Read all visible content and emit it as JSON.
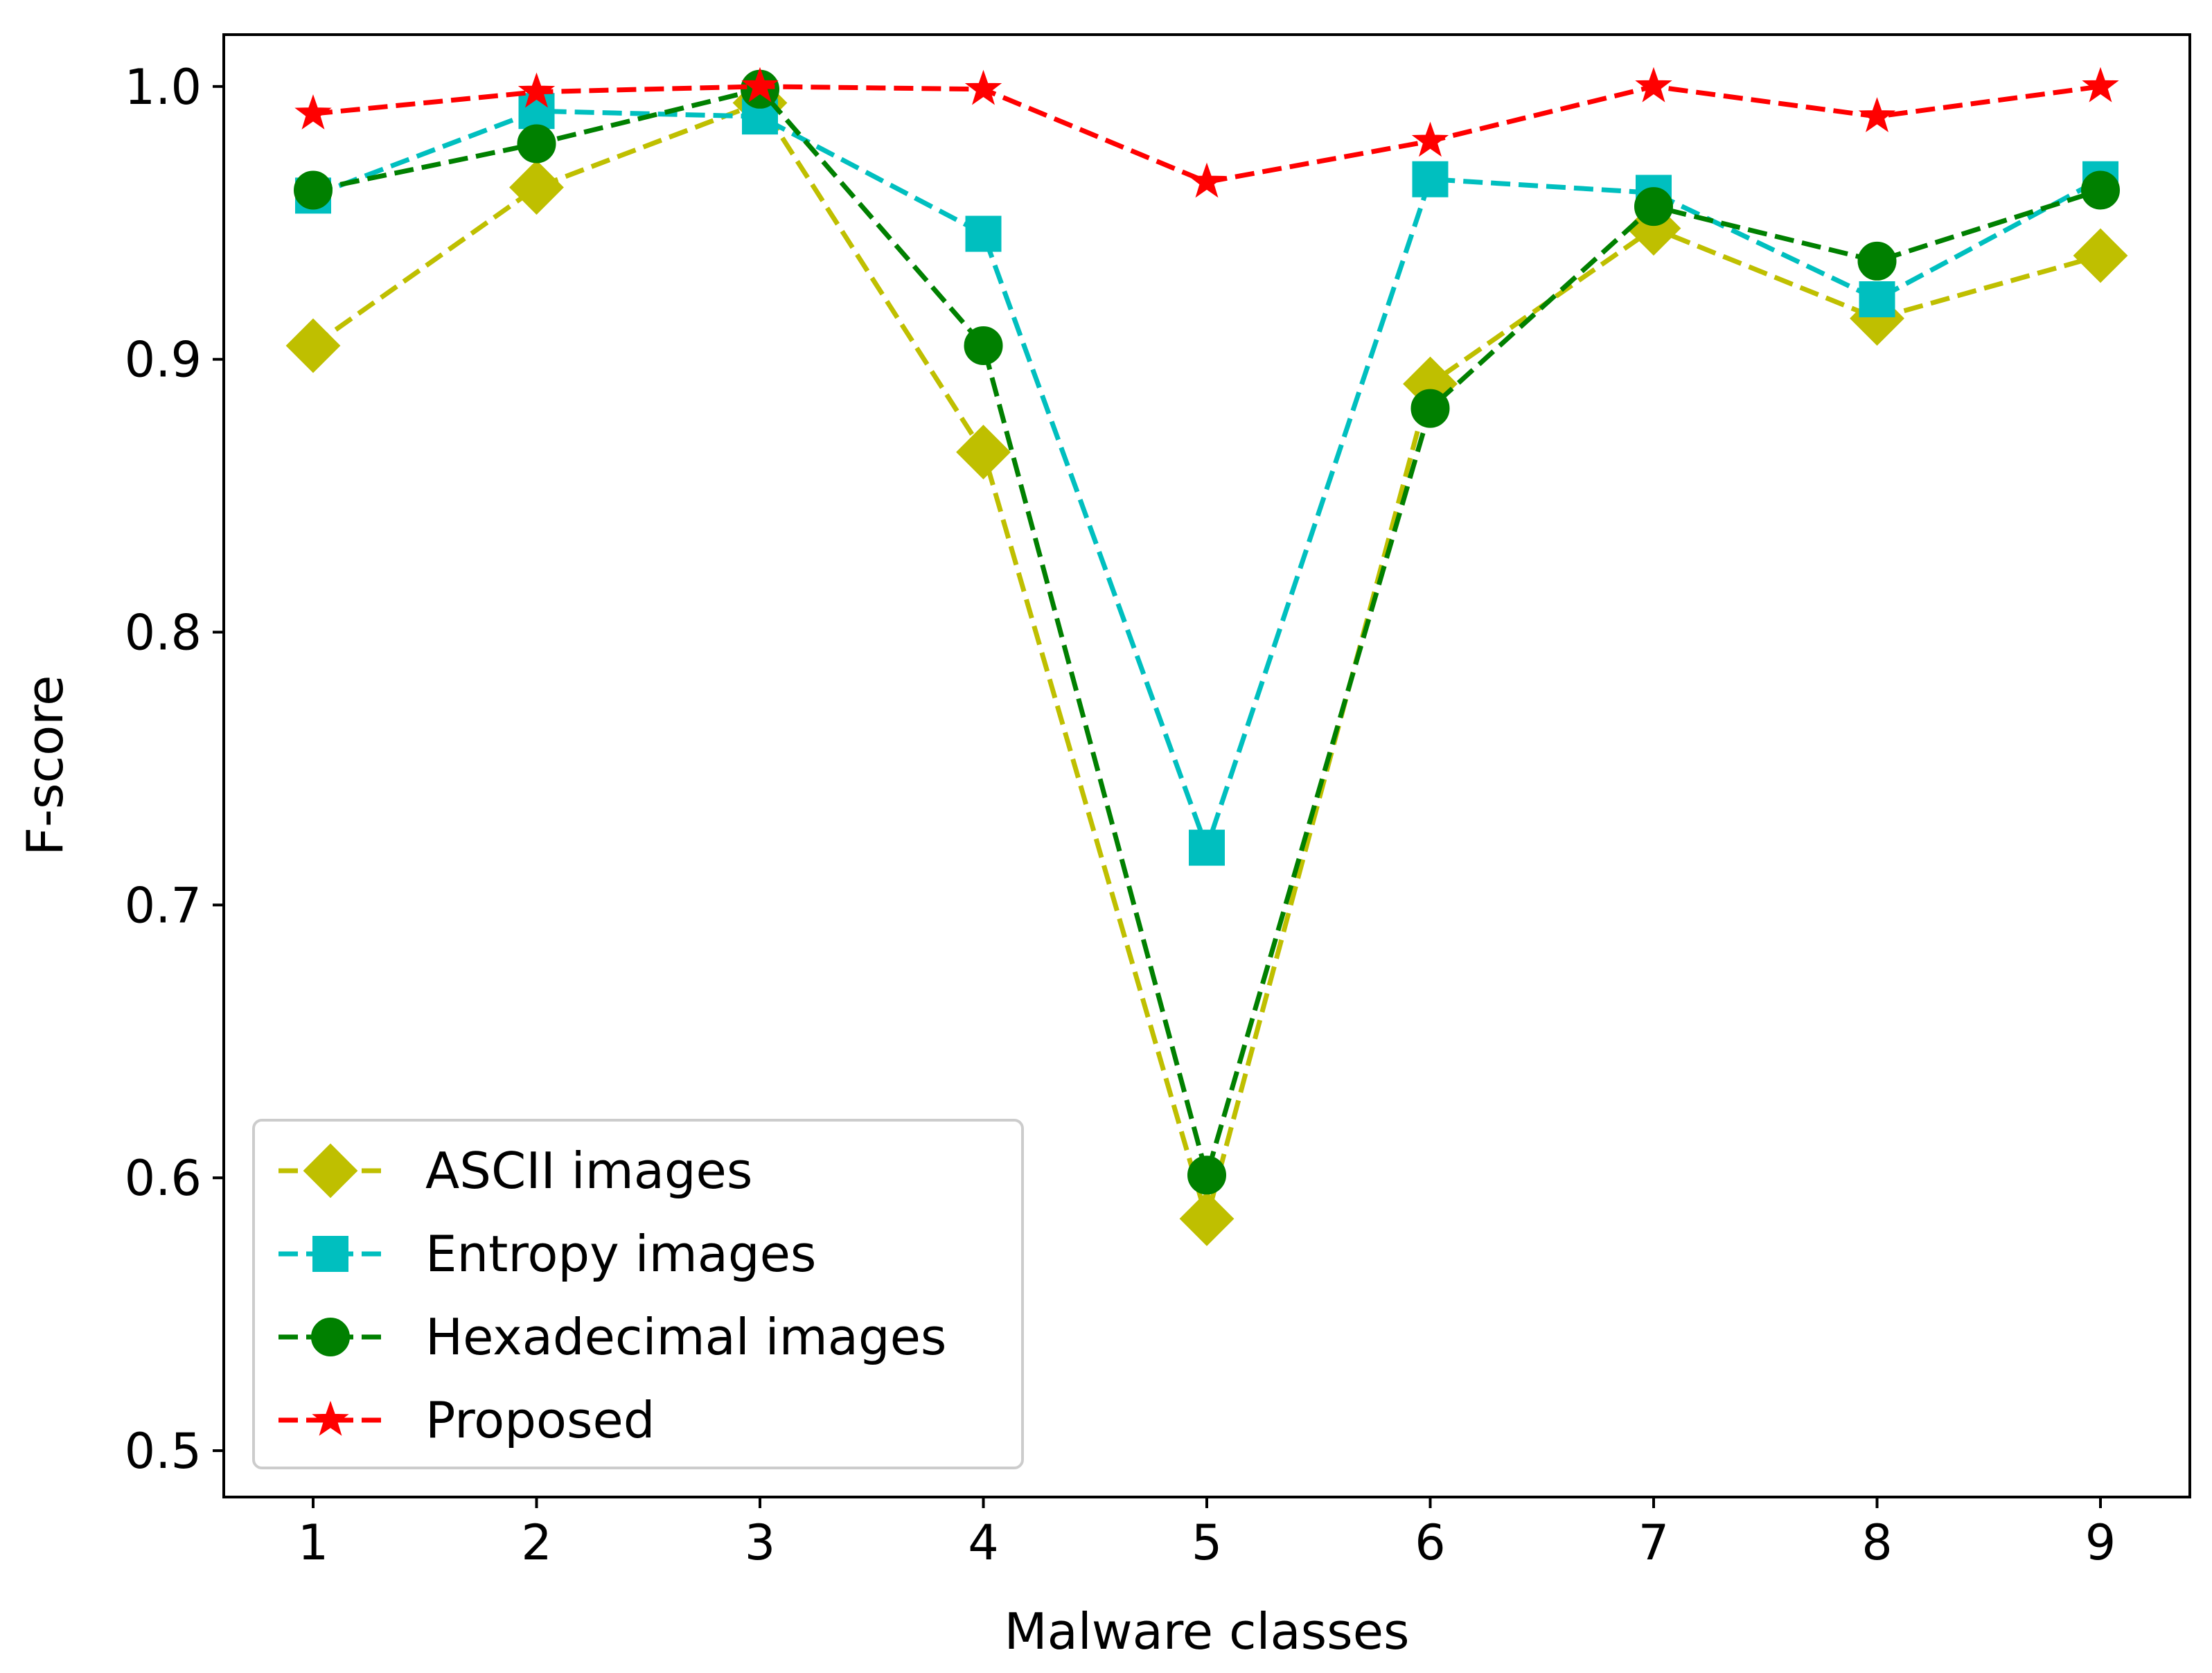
{
  "chart_data": {
    "type": "line",
    "title": "",
    "xlabel": "Malware classes",
    "ylabel": "F-score",
    "x": [
      1,
      2,
      3,
      4,
      5,
      6,
      7,
      8,
      9
    ],
    "x_tick_labels": [
      "1",
      "2",
      "3",
      "4",
      "5",
      "6",
      "7",
      "8",
      "9"
    ],
    "xlim": [
      0.6,
      9.4
    ],
    "ylim": [
      0.483,
      1.019
    ],
    "y_ticks": [
      0.5,
      0.6,
      0.7,
      0.8,
      0.9,
      1.0
    ],
    "y_tick_labels": [
      "0.5",
      "0.6",
      "0.7",
      "0.8",
      "0.9",
      "1.0"
    ],
    "grid": false,
    "legend_position": "lower-left",
    "series": [
      {
        "name": "ASCII images",
        "color": "#bfbf00",
        "marker": "diamond",
        "linestyle": "dashed",
        "values": [
          0.905,
          0.963,
          0.994,
          0.866,
          0.585,
          0.891,
          0.948,
          0.915,
          0.938
        ]
      },
      {
        "name": "Entropy images",
        "color": "#00bfbf",
        "marker": "square",
        "linestyle": "dashed",
        "values": [
          0.96,
          0.991,
          0.989,
          0.946,
          0.721,
          0.966,
          0.961,
          0.922,
          0.966
        ]
      },
      {
        "name": "Hexadecimal images",
        "color": "#008000",
        "marker": "circle",
        "linestyle": "dashed",
        "values": [
          0.962,
          0.979,
          0.999,
          0.905,
          0.601,
          0.882,
          0.956,
          0.936,
          0.962
        ]
      },
      {
        "name": "Proposed",
        "color": "#ff0000",
        "marker": "star",
        "linestyle": "dashed",
        "values": [
          0.99,
          0.998,
          1.0,
          0.999,
          0.965,
          0.98,
          1.0,
          0.989,
          1.0
        ]
      }
    ]
  }
}
